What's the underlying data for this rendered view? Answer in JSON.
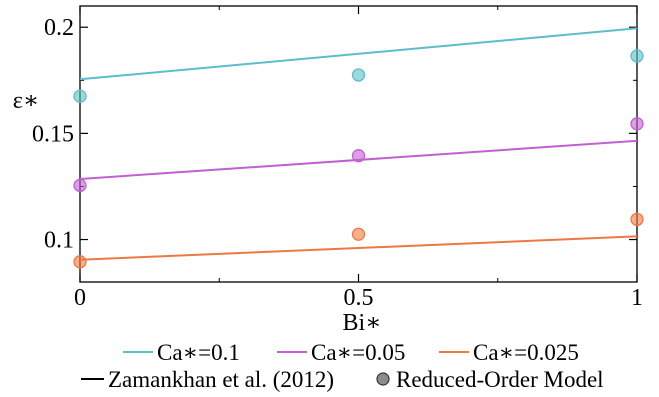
{
  "chart_data": {
    "type": "line",
    "xlabel": "Bi∗",
    "ylabel": "ε∗",
    "xlim": [
      0,
      1
    ],
    "ylim": [
      0.08,
      0.21
    ],
    "xticks": [
      {
        "value": 0,
        "label": "0"
      },
      {
        "value": 0.5,
        "label": "0.5"
      },
      {
        "value": 1,
        "label": "1"
      }
    ],
    "yticks": [
      {
        "value": 0.1,
        "label": "0.1"
      },
      {
        "value": 0.15,
        "label": "0.15"
      },
      {
        "value": 0.2,
        "label": "0.2"
      }
    ],
    "series": [
      {
        "name": "Ca∗=0.1",
        "color": "#5bbec8",
        "line": {
          "x": [
            0,
            1
          ],
          "y": [
            0.1755,
            0.1995
          ]
        },
        "points": {
          "x": [
            0,
            0.5,
            1
          ],
          "y": [
            0.1675,
            0.1775,
            0.1865
          ]
        }
      },
      {
        "name": "Ca∗=0.05",
        "color": "#c15fd3",
        "line": {
          "x": [
            0,
            1
          ],
          "y": [
            0.1285,
            0.1465
          ]
        },
        "points": {
          "x": [
            0,
            0.5,
            1
          ],
          "y": [
            0.1255,
            0.1395,
            0.1545
          ]
        }
      },
      {
        "name": "Ca∗=0.025",
        "color": "#ee7843",
        "line": {
          "x": [
            0,
            1
          ],
          "y": [
            0.0905,
            0.1015
          ]
        },
        "points": {
          "x": [
            0,
            0.5,
            1
          ],
          "y": [
            0.0895,
            0.1025,
            0.1095
          ]
        }
      }
    ],
    "legend": {
      "placement": "bottom",
      "method_entries": [
        {
          "name": "Zamankhan et al. (2012)",
          "marker": "line"
        },
        {
          "name": "Reduced-Order Model",
          "marker": "circle"
        }
      ]
    }
  }
}
